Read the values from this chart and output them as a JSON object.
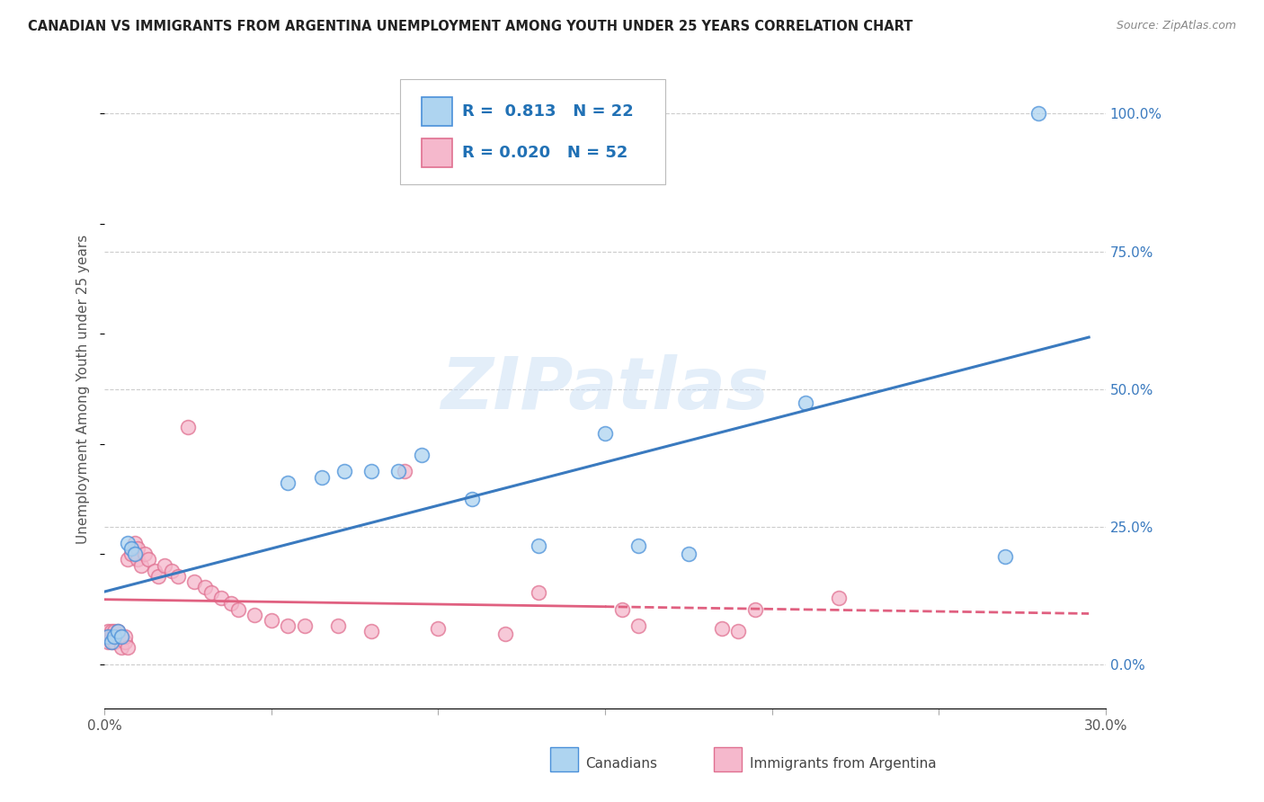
{
  "title": "CANADIAN VS IMMIGRANTS FROM ARGENTINA UNEMPLOYMENT AMONG YOUTH UNDER 25 YEARS CORRELATION CHART",
  "source": "Source: ZipAtlas.com",
  "ylabel": "Unemployment Among Youth under 25 years",
  "watermark": "ZIPatlas",
  "legend_label1": "Canadians",
  "legend_label2": "Immigrants from Argentina",
  "R1": "0.813",
  "N1": "22",
  "R2": "0.020",
  "N2": "52",
  "color_canadian_fill": "#aed4f0",
  "color_canadian_edge": "#4a90d9",
  "color_argentina_fill": "#f5b8cc",
  "color_argentina_edge": "#e07090",
  "color_line_canadian": "#3a7abf",
  "color_line_argentina": "#e06080",
  "xlim": [
    0.0,
    0.3
  ],
  "ylim": [
    -0.08,
    1.08
  ],
  "xticks": [
    0.0,
    0.05,
    0.1,
    0.15,
    0.2,
    0.25,
    0.3
  ],
  "ytick_vals_right": [
    0.0,
    0.25,
    0.5,
    0.75,
    1.0
  ],
  "ytick_labels_right": [
    "0.0%",
    "25.0%",
    "50.0%",
    "75.0%",
    "100.0%"
  ],
  "canadians_x": [
    0.001,
    0.002,
    0.003,
    0.004,
    0.005,
    0.007,
    0.008,
    0.009,
    0.055,
    0.065,
    0.072,
    0.08,
    0.088,
    0.095,
    0.11,
    0.13,
    0.15,
    0.16,
    0.175,
    0.21,
    0.27,
    0.28
  ],
  "canadians_y": [
    0.05,
    0.04,
    0.05,
    0.06,
    0.05,
    0.22,
    0.21,
    0.2,
    0.33,
    0.34,
    0.35,
    0.35,
    0.35,
    0.38,
    0.3,
    0.215,
    0.42,
    0.215,
    0.2,
    0.475,
    0.195,
    1.0
  ],
  "argentina_x": [
    0.001,
    0.001,
    0.001,
    0.002,
    0.002,
    0.002,
    0.003,
    0.003,
    0.003,
    0.004,
    0.004,
    0.005,
    0.005,
    0.006,
    0.006,
    0.007,
    0.007,
    0.008,
    0.009,
    0.01,
    0.01,
    0.011,
    0.012,
    0.013,
    0.015,
    0.016,
    0.018,
    0.02,
    0.022,
    0.025,
    0.027,
    0.03,
    0.032,
    0.035,
    0.038,
    0.04,
    0.045,
    0.05,
    0.055,
    0.06,
    0.07,
    0.08,
    0.09,
    0.1,
    0.12,
    0.13,
    0.155,
    0.16,
    0.185,
    0.19,
    0.195,
    0.22
  ],
  "argentina_y": [
    0.05,
    0.06,
    0.04,
    0.05,
    0.06,
    0.04,
    0.05,
    0.06,
    0.04,
    0.05,
    0.06,
    0.03,
    0.05,
    0.04,
    0.05,
    0.03,
    0.19,
    0.2,
    0.22,
    0.21,
    0.19,
    0.18,
    0.2,
    0.19,
    0.17,
    0.16,
    0.18,
    0.17,
    0.16,
    0.43,
    0.15,
    0.14,
    0.13,
    0.12,
    0.11,
    0.1,
    0.09,
    0.08,
    0.07,
    0.07,
    0.07,
    0.06,
    0.35,
    0.065,
    0.055,
    0.13,
    0.1,
    0.07,
    0.065,
    0.06,
    0.1,
    0.12
  ]
}
